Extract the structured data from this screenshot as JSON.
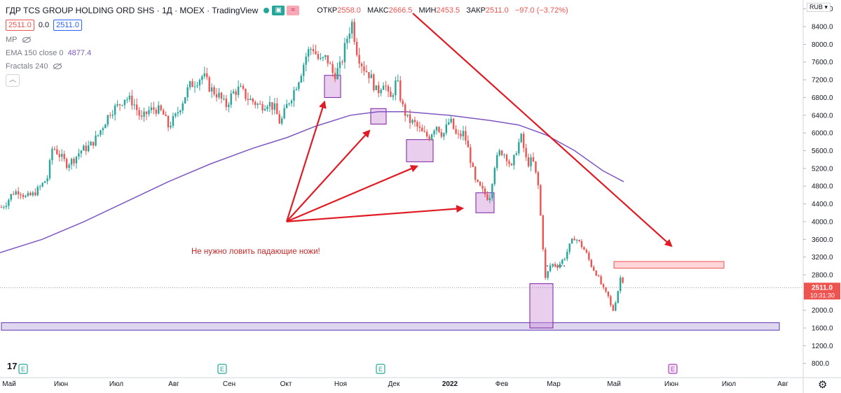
{
  "header": {
    "title": "ГДР TCS GROUP HOLDING ORD SHS · 1Д · MOEX · TradingView",
    "open_label": "ОТКР",
    "open": "2558.0",
    "high_label": "МАКС",
    "high": "2666.5",
    "low_label": "МИН",
    "low": "2453.5",
    "close_label": "ЗАКР",
    "close": "2511.0",
    "change": "−97.0 (−3.72%)",
    "bid": "2511.0",
    "spread": "0.0",
    "ask": "2511.0"
  },
  "indicators": {
    "mp": "MP",
    "ema_label": "EMA 150 close 0",
    "ema_value": "4877.4",
    "fractals_label": "Fractals 240"
  },
  "currency": "RUB",
  "price_label": {
    "value": "2511.0",
    "countdown": "10:31:30"
  },
  "annotation": "Не нужно ловить падающие ножи!",
  "colors": {
    "up": "#26a69a",
    "down": "#ef5350",
    "ema": "#7e57c2",
    "arrow": "#e01b24",
    "box": "#ce93d8"
  },
  "chart_data": {
    "type": "candlestick",
    "price_axis_ticks": [
      8800,
      8400,
      8000,
      7600,
      7200,
      6800,
      6400,
      6000,
      5600,
      5200,
      4800,
      4400,
      4000,
      3600,
      3200,
      2800,
      2400,
      2000,
      1600,
      1200,
      800
    ],
    "price_range": [
      480,
      9000
    ],
    "time_axis_labels": [
      "Май",
      "Июн",
      "Июл",
      "Авг",
      "Сен",
      "Окт",
      "Ноя",
      "Дек",
      "2022",
      "Фев",
      "Мар",
      "Май",
      "Июн",
      "Июл",
      "Авг"
    ],
    "last_price": 2511.0,
    "price_path": [
      [
        0,
        4300
      ],
      [
        8,
        4400
      ],
      [
        18,
        4650
      ],
      [
        28,
        4700
      ],
      [
        36,
        4550
      ],
      [
        46,
        4600
      ],
      [
        56,
        4750
      ],
      [
        68,
        5000
      ],
      [
        75,
        5700
      ],
      [
        85,
        5500
      ],
      [
        95,
        5300
      ],
      [
        105,
        5400
      ],
      [
        115,
        5600
      ],
      [
        128,
        5700
      ],
      [
        138,
        5900
      ],
      [
        148,
        6200
      ],
      [
        158,
        6500
      ],
      [
        168,
        6600
      ],
      [
        178,
        6800
      ],
      [
        190,
        6700
      ],
      [
        202,
        6300
      ],
      [
        212,
        6500
      ],
      [
        222,
        6550
      ],
      [
        232,
        6450
      ],
      [
        240,
        6150
      ],
      [
        250,
        6350
      ],
      [
        260,
        6700
      ],
      [
        270,
        7050
      ],
      [
        282,
        7200
      ],
      [
        290,
        7300
      ],
      [
        300,
        7000
      ],
      [
        312,
        6850
      ],
      [
        322,
        6600
      ],
      [
        332,
        6900
      ],
      [
        342,
        7000
      ],
      [
        352,
        6800
      ],
      [
        362,
        6700
      ],
      [
        372,
        6600
      ],
      [
        382,
        6700
      ],
      [
        392,
        6550
      ],
      [
        400,
        6200
      ],
      [
        410,
        6650
      ],
      [
        418,
        6900
      ],
      [
        428,
        7300
      ],
      [
        438,
        7800
      ],
      [
        446,
        7950
      ],
      [
        456,
        7600
      ],
      [
        466,
        7700
      ],
      [
        476,
        7300
      ],
      [
        486,
        7500
      ],
      [
        496,
        8200
      ],
      [
        502,
        8500
      ],
      [
        510,
        7800
      ],
      [
        518,
        7500
      ],
      [
        528,
        7300
      ],
      [
        538,
        6900
      ],
      [
        548,
        7200
      ],
      [
        556,
        6700
      ],
      [
        566,
        7200
      ],
      [
        574,
        6600
      ],
      [
        582,
        6300
      ],
      [
        592,
        6200
      ],
      [
        602,
        6000
      ],
      [
        612,
        5900
      ],
      [
        622,
        6200
      ],
      [
        632,
        5950
      ],
      [
        642,
        6300
      ],
      [
        652,
        5900
      ],
      [
        662,
        6000
      ],
      [
        670,
        5500
      ],
      [
        678,
        4900
      ],
      [
        688,
        4700
      ],
      [
        698,
        4500
      ],
      [
        706,
        5300
      ],
      [
        714,
        5600
      ],
      [
        722,
        5500
      ],
      [
        730,
        5200
      ],
      [
        738,
        5700
      ],
      [
        744,
        5900
      ],
      [
        752,
        5300
      ],
      [
        760,
        5400
      ],
      [
        768,
        4800
      ],
      [
        774,
        3600
      ],
      [
        778,
        2700
      ],
      [
        786,
        3050
      ],
      [
        796,
        3000
      ],
      [
        806,
        3200
      ],
      [
        814,
        3500
      ],
      [
        820,
        3650
      ],
      [
        828,
        3500
      ],
      [
        836,
        3300
      ],
      [
        844,
        3000
      ],
      [
        852,
        2800
      ],
      [
        860,
        2500
      ],
      [
        868,
        2300
      ],
      [
        874,
        1950
      ],
      [
        880,
        2300
      ],
      [
        886,
        2800
      ],
      [
        892,
        2511
      ]
    ],
    "ema_150": [
      [
        0,
        3300
      ],
      [
        60,
        3600
      ],
      [
        120,
        4000
      ],
      [
        180,
        4450
      ],
      [
        240,
        4900
      ],
      [
        300,
        5300
      ],
      [
        360,
        5650
      ],
      [
        410,
        5900
      ],
      [
        450,
        6150
      ],
      [
        500,
        6400
      ],
      [
        540,
        6480
      ],
      [
        580,
        6480
      ],
      [
        640,
        6400
      ],
      [
        700,
        6280
      ],
      [
        740,
        6180
      ],
      [
        780,
        5950
      ],
      [
        820,
        5600
      ],
      [
        860,
        5150
      ],
      [
        890,
        4900
      ]
    ],
    "zones": [
      {
        "x1": 463,
        "x2": 486,
        "y_top": 7300,
        "y_bottom": 6800
      },
      {
        "x1": 529,
        "x2": 551,
        "y_top": 6550,
        "y_bottom": 6200
      },
      {
        "x1": 580,
        "x2": 618,
        "y_top": 5850,
        "y_bottom": 5350
      },
      {
        "x1": 679,
        "x2": 705,
        "y_top": 4650,
        "y_bottom": 4200
      },
      {
        "x1": 756,
        "x2": 789,
        "y_top": 2600,
        "y_bottom": 1600
      }
    ],
    "support_band": {
      "y_top": 1720,
      "y_bottom": 1550
    },
    "resistance_zone": {
      "x1": 876,
      "x2": 1033,
      "y_top": 3100,
      "y_bottom": 2950
    },
    "dotted_level": 3000,
    "arrows": [
      {
        "from": [
          409,
          4000
        ],
        "to": [
          463,
          6700
        ]
      },
      {
        "from": [
          409,
          4000
        ],
        "to": [
          527,
          6050
        ]
      },
      {
        "from": [
          409,
          4000
        ],
        "to": [
          595,
          5250
        ]
      },
      {
        "from": [
          409,
          4000
        ],
        "to": [
          660,
          4300
        ]
      },
      {
        "from": [
          589,
          8700
        ],
        "to": [
          958,
          3450
        ]
      }
    ],
    "earnings_markers": [
      {
        "x": 33
      },
      {
        "x": 317
      },
      {
        "x": 543
      }
    ],
    "future_marker": {
      "x": 960
    }
  }
}
